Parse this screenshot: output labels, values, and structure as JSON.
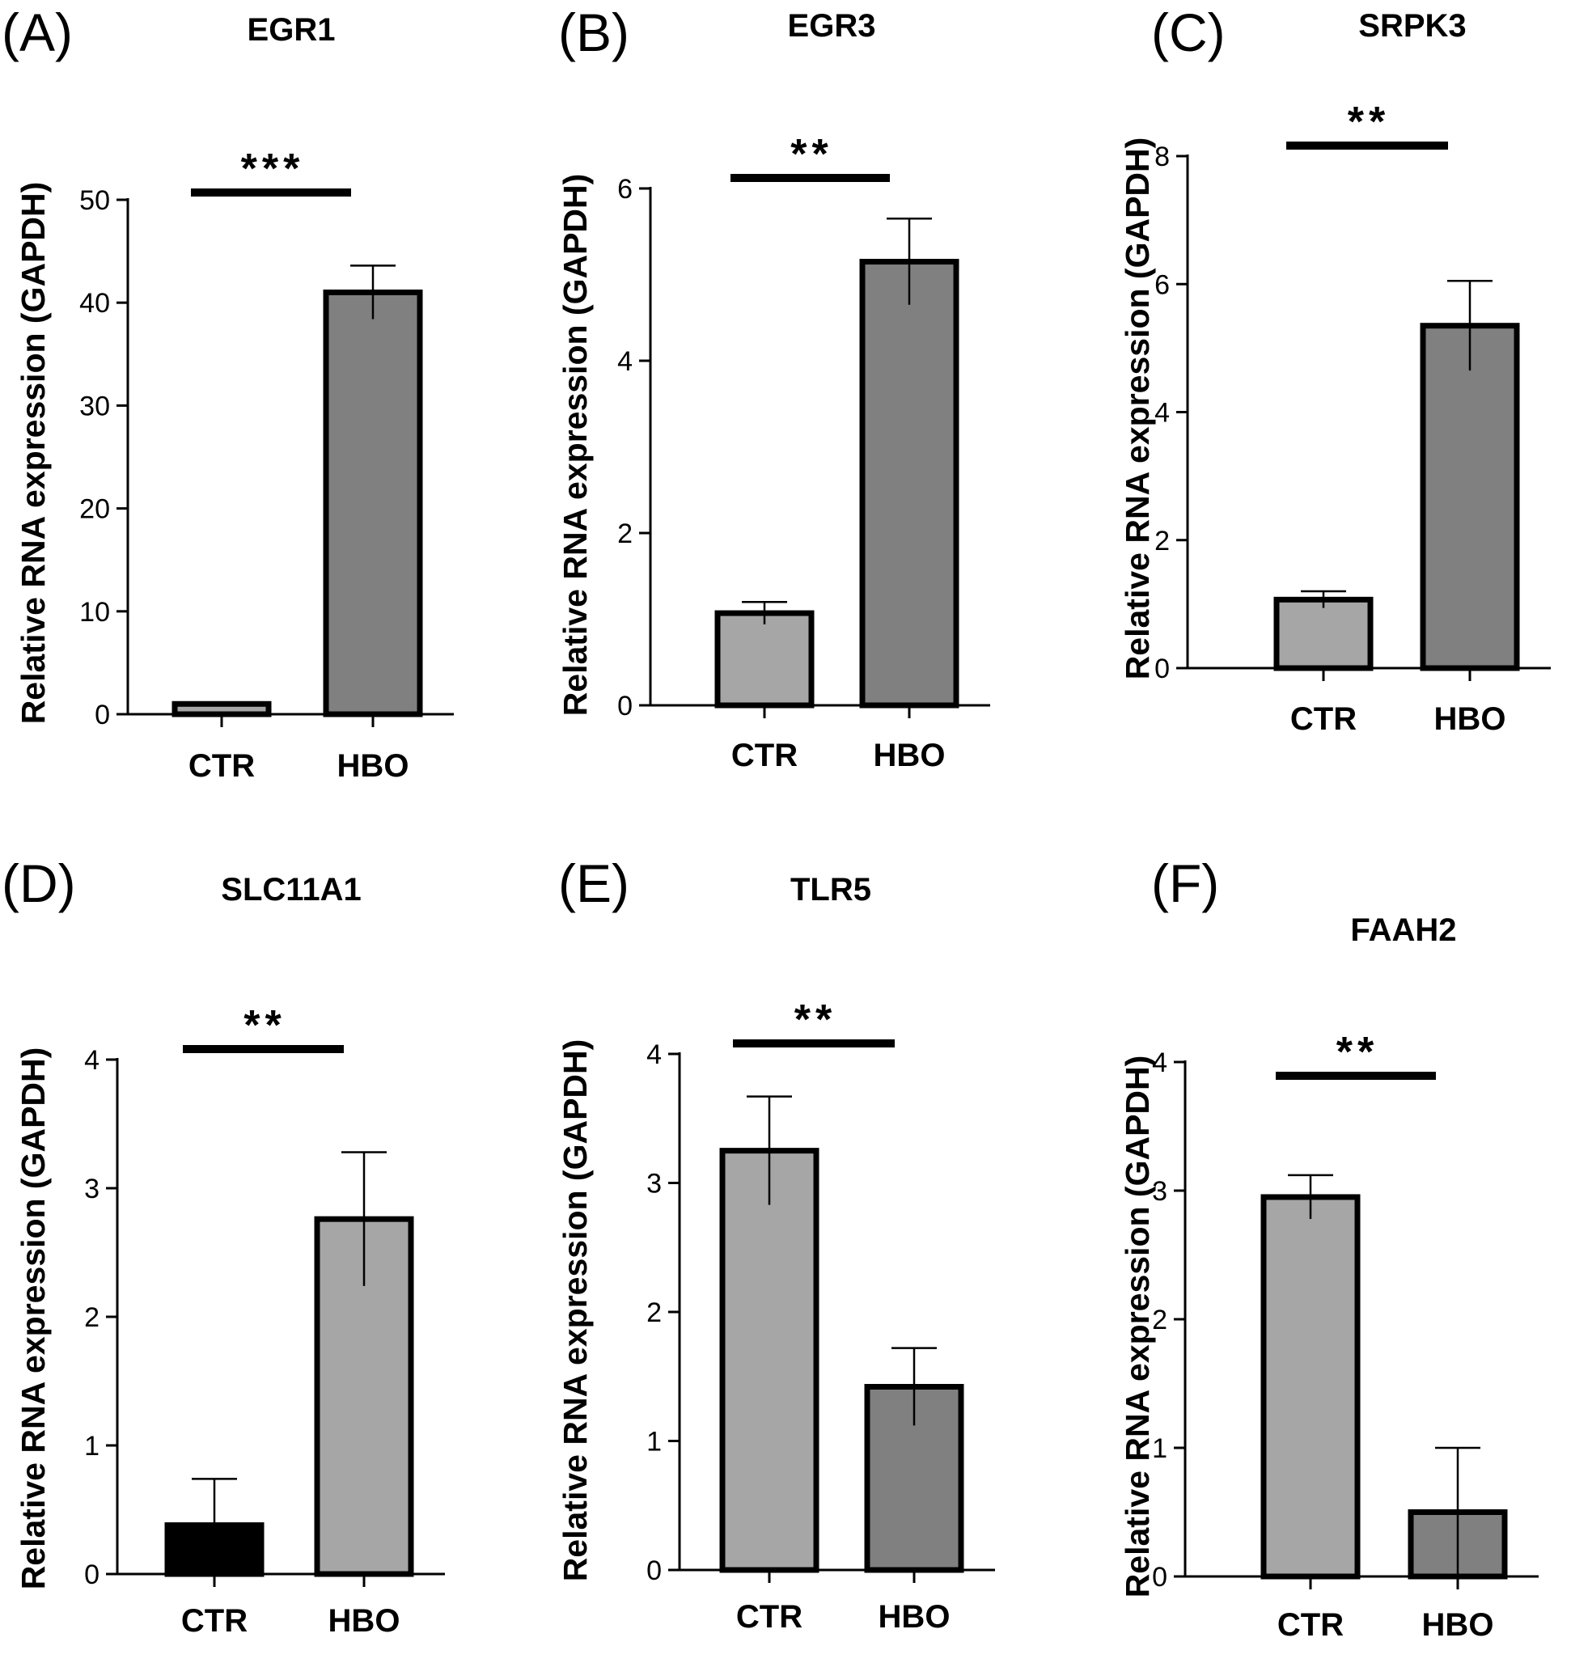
{
  "chart_data": [
    {
      "panel": "(A)",
      "type": "bar",
      "title": "EGR1",
      "ylabel": "Relative RNA expression (GAPDH)",
      "categories": [
        "CTR",
        "HBO"
      ],
      "values": [
        1.0,
        41.0
      ],
      "errors": [
        0.0,
        2.6
      ],
      "ylim": [
        0,
        50
      ],
      "yticks": [
        0,
        10,
        20,
        30,
        40,
        50
      ],
      "significance": "***",
      "colors": [
        "#a6a6a6",
        "#808080"
      ]
    },
    {
      "panel": "(B)",
      "type": "bar",
      "title": "EGR3",
      "ylabel": "Relative RNA expression (GAPDH)",
      "categories": [
        "CTR",
        "HBO"
      ],
      "values": [
        1.07,
        5.15
      ],
      "errors": [
        0.13,
        0.5
      ],
      "ylim": [
        0,
        6
      ],
      "yticks": [
        0,
        2,
        4,
        6
      ],
      "significance": "**",
      "colors": [
        "#a6a6a6",
        "#808080"
      ]
    },
    {
      "panel": "(C)",
      "type": "bar",
      "title": "SRPK3",
      "ylabel": "Relative RNA expression (GAPDH)",
      "categories": [
        "CTR",
        "HBO"
      ],
      "values": [
        1.07,
        5.35
      ],
      "errors": [
        0.13,
        0.7
      ],
      "ylim": [
        0,
        8
      ],
      "yticks": [
        0,
        2,
        4,
        6,
        8
      ],
      "significance": "**",
      "colors": [
        "#a6a6a6",
        "#808080"
      ]
    },
    {
      "panel": "(D)",
      "type": "bar",
      "title": "SLC11A1",
      "ylabel": "Relative RNA expression (GAPDH)",
      "categories": [
        "CTR",
        "HBO"
      ],
      "values": [
        0.38,
        2.76
      ],
      "errors": [
        0.36,
        0.52
      ],
      "ylim": [
        0,
        4
      ],
      "yticks": [
        0,
        1,
        2,
        3,
        4
      ],
      "significance": "**",
      "colors": [
        "#000000",
        "#a6a6a6"
      ]
    },
    {
      "panel": "(E)",
      "type": "bar",
      "title": "TLR5",
      "ylabel": "Relative RNA expression (GAPDH)",
      "categories": [
        "CTR",
        "HBO"
      ],
      "values": [
        3.25,
        1.42
      ],
      "errors": [
        0.42,
        0.3
      ],
      "ylim": [
        0,
        4
      ],
      "yticks": [
        0,
        1,
        2,
        3,
        4
      ],
      "significance": "**",
      "colors": [
        "#a6a6a6",
        "#808080"
      ]
    },
    {
      "panel": "(F)",
      "type": "bar",
      "title": "FAAH2",
      "ylabel": "Relative RNA expression (GAPDH)",
      "categories": [
        "CTR",
        "HBO"
      ],
      "values": [
        2.95,
        0.5
      ],
      "errors": [
        0.17,
        0.5
      ],
      "ylim": [
        0,
        4
      ],
      "yticks": [
        0,
        1,
        2,
        3,
        4
      ],
      "significance": "**",
      "colors": [
        "#a6a6a6",
        "#808080"
      ]
    }
  ]
}
